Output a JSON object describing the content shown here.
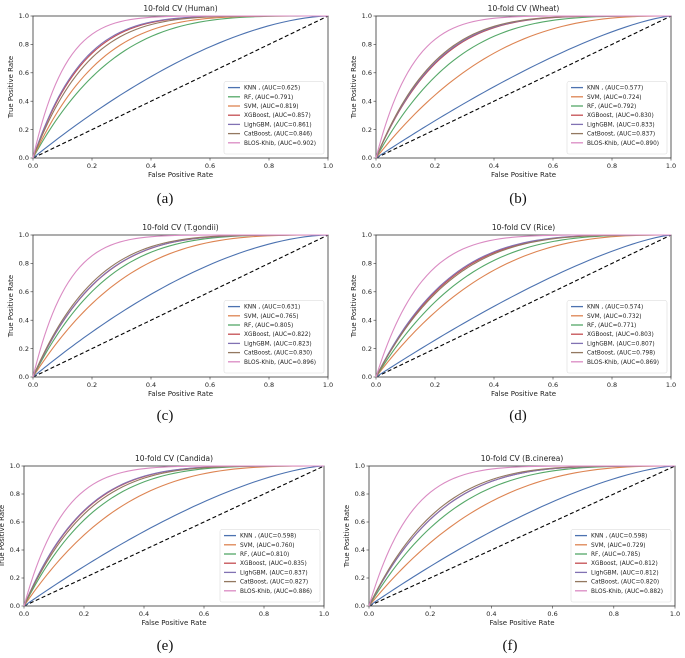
{
  "figure": {
    "panel_captions": [
      "(a)",
      "(b)",
      "(c)",
      "(d)",
      "(e)",
      "(f)"
    ]
  },
  "colors": {
    "KNN": "#4c72b0",
    "SVM": "#dd8452",
    "RF": "#55a868",
    "XGBoost": "#c44e52",
    "LighGBM": "#8172b3",
    "CatBoost": "#937860",
    "BLOS-Khib": "#da8bc3",
    "diagonal": "#000000"
  },
  "chart_data": [
    {
      "type": "line",
      "title": "10-fold CV (Human)",
      "xlabel": "False Positive Rate",
      "ylabel": "True Positive Rate",
      "xlim": [
        0,
        1
      ],
      "ylim": [
        0,
        1
      ],
      "xticks": [
        "0.0",
        "0.2",
        "0.4",
        "0.6",
        "0.8",
        "1.0"
      ],
      "yticks": [
        "0.0",
        "0.2",
        "0.4",
        "0.6",
        "0.8",
        "1.0"
      ],
      "legend_position": "lower-right",
      "diagonal": "dashed",
      "series": [
        {
          "name": "KNN",
          "legend": "KNN , (AUC=0.625)",
          "auc": 0.625
        },
        {
          "name": "RF",
          "legend": "RF, (AUC=0.791)",
          "auc": 0.791
        },
        {
          "name": "SVM",
          "legend": "SVM, (AUC=0.819)",
          "auc": 0.819
        },
        {
          "name": "XGBoost",
          "legend": "XGBoost, (AUC=0.857)",
          "auc": 0.857
        },
        {
          "name": "LighGBM",
          "legend": "LighGBM, (AUC=0.861)",
          "auc": 0.861
        },
        {
          "name": "CatBoost",
          "legend": "CatBoost, (AUC=0.846)",
          "auc": 0.846
        },
        {
          "name": "BLOS-Khib",
          "legend": "BLOS-Khib, (AUC=0.902)",
          "auc": 0.902
        }
      ]
    },
    {
      "type": "line",
      "title": "10-fold CV (Wheat)",
      "xlabel": "False Positive Rate",
      "ylabel": "True Positive Rate",
      "xlim": [
        0,
        1
      ],
      "ylim": [
        0,
        1
      ],
      "xticks": [
        "0.0",
        "0.2",
        "0.4",
        "0.6",
        "0.8",
        "1.0"
      ],
      "yticks": [
        "0.0",
        "0.2",
        "0.4",
        "0.6",
        "0.8",
        "1.0"
      ],
      "legend_position": "lower-right",
      "diagonal": "dashed",
      "series": [
        {
          "name": "KNN",
          "legend": "KNN , (AUC=0.577)",
          "auc": 0.577
        },
        {
          "name": "SVM",
          "legend": "SVM, (AUC=0.724)",
          "auc": 0.724
        },
        {
          "name": "RF",
          "legend": "RF, (AUC=0.792)",
          "auc": 0.792
        },
        {
          "name": "XGBoost",
          "legend": "XGBoost, (AUC=0.830)",
          "auc": 0.83
        },
        {
          "name": "LighGBM",
          "legend": "LighGBM, (AUC=0.833)",
          "auc": 0.833
        },
        {
          "name": "CatBoost",
          "legend": "CatBoost, (AUC=0.837)",
          "auc": 0.837
        },
        {
          "name": "BLOS-Khib",
          "legend": "BLOS-Khib, (AUC=0.890)",
          "auc": 0.89
        }
      ]
    },
    {
      "type": "line",
      "title": "10-fold CV (T.gondii)",
      "xlabel": "False Positive Rate",
      "ylabel": "True Positive Rate",
      "xlim": [
        0,
        1
      ],
      "ylim": [
        0,
        1
      ],
      "xticks": [
        "0.0",
        "0.2",
        "0.4",
        "0.6",
        "0.8",
        "1.0"
      ],
      "yticks": [
        "0.0",
        "0.2",
        "0.4",
        "0.6",
        "0.8",
        "1.0"
      ],
      "legend_position": "lower-right",
      "diagonal": "dashed",
      "series": [
        {
          "name": "KNN",
          "legend": "KNN , (AUC=0.631)",
          "auc": 0.631
        },
        {
          "name": "SVM",
          "legend": "SVM, (AUC=0.765)",
          "auc": 0.765
        },
        {
          "name": "RF",
          "legend": "RF, (AUC=0.805)",
          "auc": 0.805
        },
        {
          "name": "XGBoost",
          "legend": "XGBoost, (AUC=0.822)",
          "auc": 0.822
        },
        {
          "name": "LighGBM",
          "legend": "LighGBM, (AUC=0.823)",
          "auc": 0.823
        },
        {
          "name": "CatBoost",
          "legend": "CatBoost, (AUC=0.830)",
          "auc": 0.83
        },
        {
          "name": "BLOS-Khib",
          "legend": "BLOS-Khib, (AUC=0.896)",
          "auc": 0.896
        }
      ]
    },
    {
      "type": "line",
      "title": "10-fold CV (Rice)",
      "xlabel": "False Positive Rate",
      "ylabel": "True Positive Rate",
      "xlim": [
        0,
        1
      ],
      "ylim": [
        0,
        1
      ],
      "xticks": [
        "0.0",
        "0.2",
        "0.4",
        "0.6",
        "0.8",
        "1.0"
      ],
      "yticks": [
        "0.0",
        "0.2",
        "0.4",
        "0.6",
        "0.8",
        "1.0"
      ],
      "legend_position": "lower-right",
      "diagonal": "dashed",
      "series": [
        {
          "name": "KNN",
          "legend": "KNN , (AUC=0.574)",
          "auc": 0.574
        },
        {
          "name": "SVM",
          "legend": "SVM, (AUC=0.732)",
          "auc": 0.732
        },
        {
          "name": "RF",
          "legend": "RF, (AUC=0.771)",
          "auc": 0.771
        },
        {
          "name": "XGBoost",
          "legend": "XGBoost, (AUC=0.803)",
          "auc": 0.803
        },
        {
          "name": "LighGBM",
          "legend": "LighGBM, (AUC=0.807)",
          "auc": 0.807
        },
        {
          "name": "CatBoost",
          "legend": "CatBoost, (AUC=0.798)",
          "auc": 0.798
        },
        {
          "name": "BLOS-Khib",
          "legend": "BLOS-Khib, (AUC=0.869)",
          "auc": 0.869
        }
      ]
    },
    {
      "type": "line",
      "title": "10-fold CV (Candida)",
      "xlabel": "False Positive Rate",
      "ylabel": "True Positive Rate",
      "xlim": [
        0,
        1
      ],
      "ylim": [
        0,
        1
      ],
      "xticks": [
        "0.0",
        "0.2",
        "0.4",
        "0.6",
        "0.8",
        "1.0"
      ],
      "yticks": [
        "0.0",
        "0.2",
        "0.4",
        "0.6",
        "0.8",
        "1.0"
      ],
      "legend_position": "lower-right",
      "diagonal": "dashed",
      "series": [
        {
          "name": "KNN",
          "legend": "KNN , (AUC=0.598)",
          "auc": 0.598
        },
        {
          "name": "SVM",
          "legend": "SVM, (AUC=0.760)",
          "auc": 0.76
        },
        {
          "name": "RF",
          "legend": "RF, (AUC=0.810)",
          "auc": 0.81
        },
        {
          "name": "XGBoost",
          "legend": "XGBoost, (AUC=0.835)",
          "auc": 0.835
        },
        {
          "name": "LighGBM",
          "legend": "LighGBM, (AUC=0.837)",
          "auc": 0.837
        },
        {
          "name": "CatBoost",
          "legend": "CatBoost, (AUC=0.827)",
          "auc": 0.827
        },
        {
          "name": "BLOS-Khib",
          "legend": "BLOS-Khib, (AUC=0.886)",
          "auc": 0.886
        }
      ]
    },
    {
      "type": "line",
      "title": "10-fold CV (B.cinerea)",
      "xlabel": "False Positive Rate",
      "ylabel": "True Positive Rate",
      "xlim": [
        0,
        1
      ],
      "ylim": [
        0,
        1
      ],
      "xticks": [
        "0.0",
        "0.2",
        "0.4",
        "0.6",
        "0.8",
        "1.0"
      ],
      "yticks": [
        "0.0",
        "0.2",
        "0.4",
        "0.6",
        "0.8",
        "1.0"
      ],
      "legend_position": "lower-right",
      "diagonal": "dashed",
      "series": [
        {
          "name": "KNN",
          "legend": "KNN , (AUC=0.598)",
          "auc": 0.598
        },
        {
          "name": "SVM",
          "legend": "SVM, (AUC=0.729)",
          "auc": 0.729
        },
        {
          "name": "RF",
          "legend": "RF, (AUC=0.785)",
          "auc": 0.785
        },
        {
          "name": "XGBoost",
          "legend": "XGBoost, (AUC=0.812)",
          "auc": 0.812
        },
        {
          "name": "LighGBM",
          "legend": "LighGBM, (AUC=0.812)",
          "auc": 0.812
        },
        {
          "name": "CatBoost",
          "legend": "CatBoost, (AUC=0.820)",
          "auc": 0.82
        },
        {
          "name": "BLOS-Khib",
          "legend": "BLOS-Khib, (AUC=0.882)",
          "auc": 0.882
        }
      ]
    }
  ]
}
